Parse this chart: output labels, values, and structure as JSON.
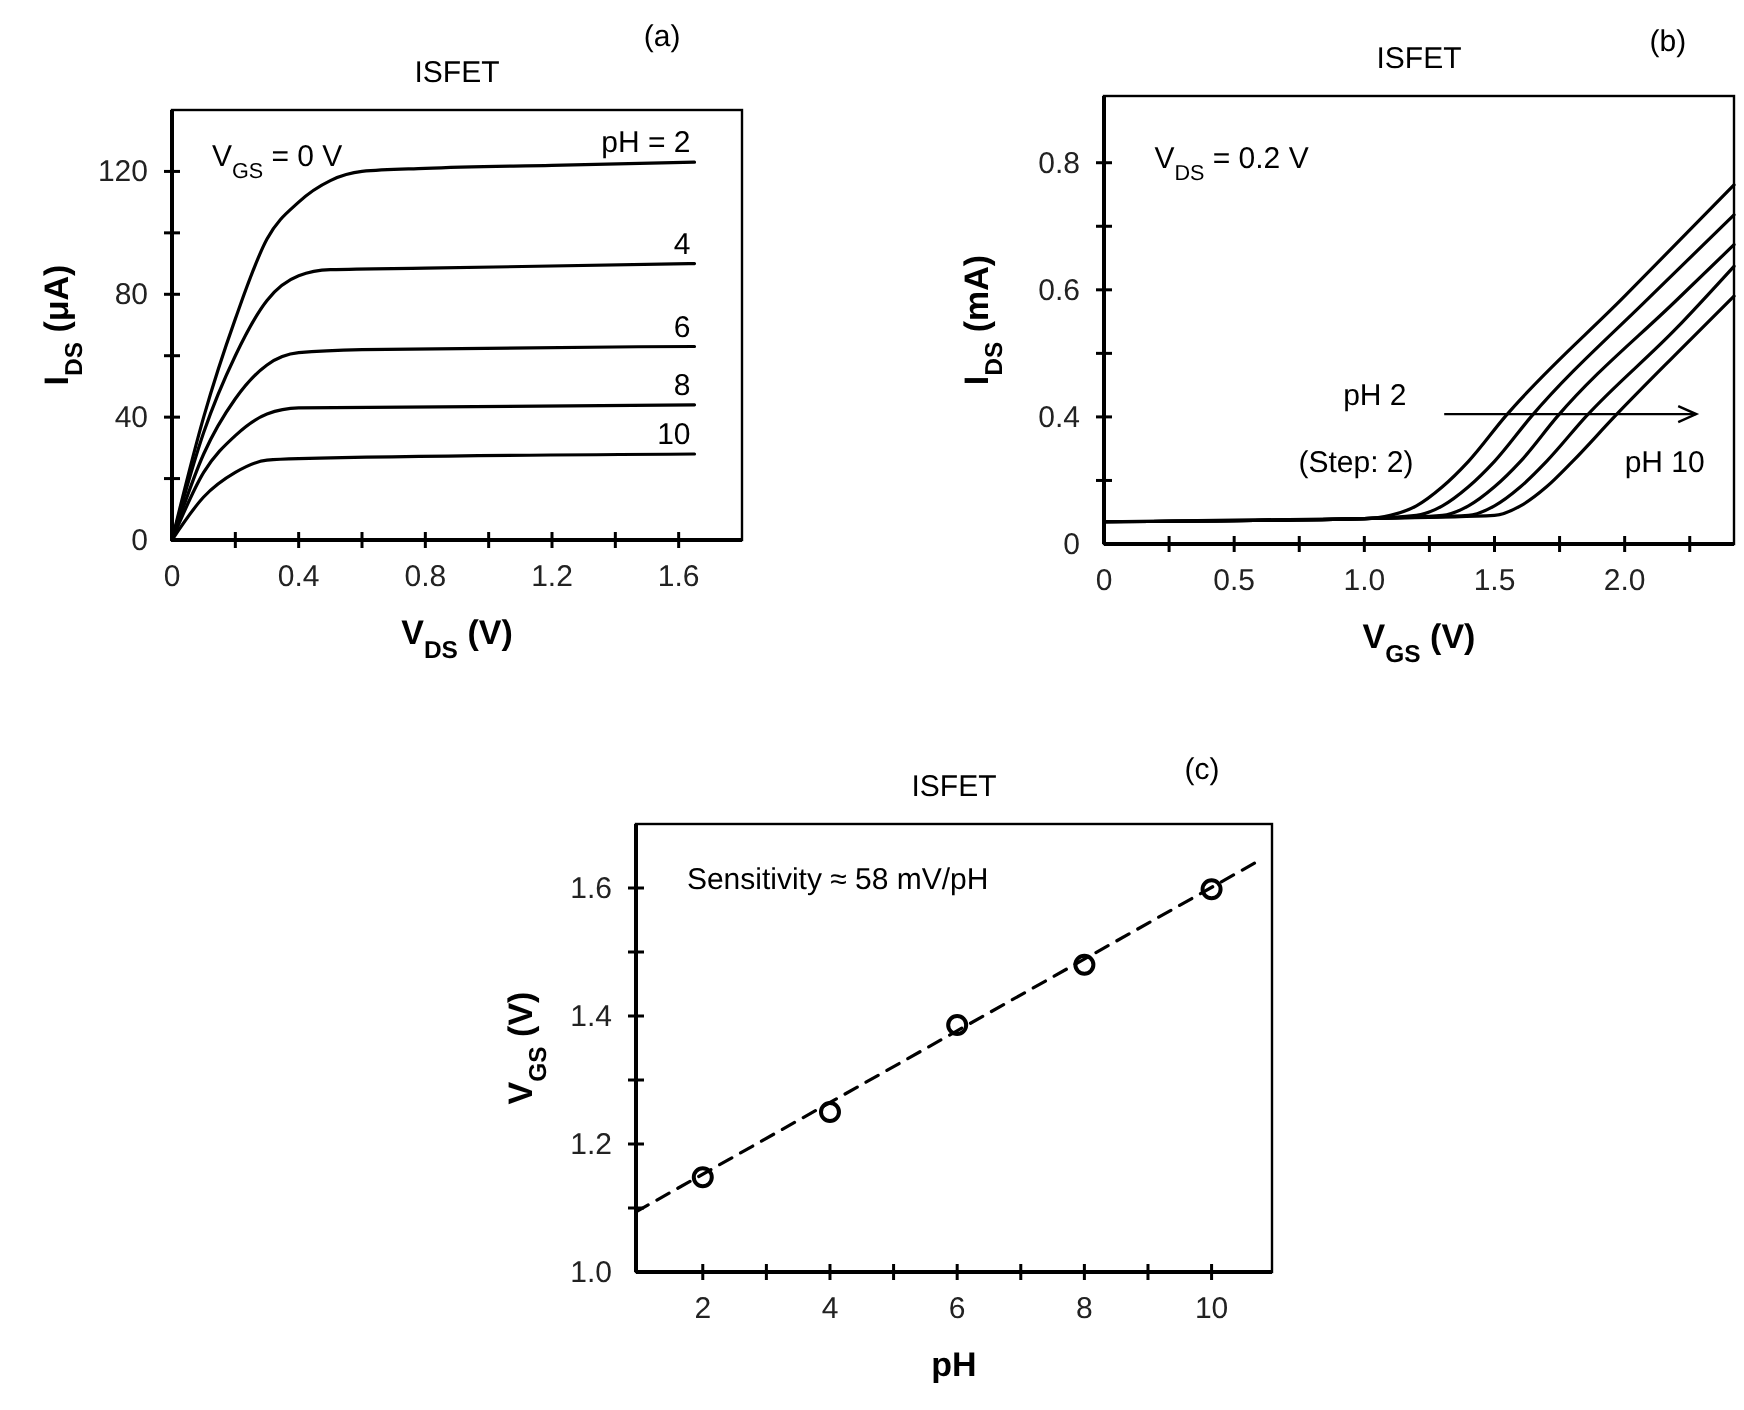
{
  "chart_data": [
    {
      "type": "line",
      "title": "ISFET",
      "xlabel": "V$_{DS}$ (V)",
      "ylabel": "I$_{DS}$ (μA)",
      "annotations": [
        "V$_{GS}$ = 0 V",
        "(a)"
      ],
      "xlim": [
        0,
        1.8
      ],
      "xticks": [
        0,
        {
          "value": 0.2,
          "label": null
        },
        0.4,
        {
          "value": 0.6,
          "label": null
        },
        0.8,
        {
          "value": 1.0,
          "label": null
        },
        1.2,
        {
          "value": 1.4,
          "label": null
        },
        1.6
      ],
      "ylim": [
        0,
        140
      ],
      "yticks": [
        0,
        {
          "value": 20,
          "label": null
        },
        40,
        {
          "value": 60,
          "label": null
        },
        80,
        {
          "value": 100,
          "label": null
        },
        120
      ],
      "series": [
        {
          "name": "pH = 2",
          "color": "#000000",
          "x": [
            0,
            0.1,
            0.2,
            0.3,
            0.4,
            0.5,
            0.6,
            0.8,
            1.2,
            1.65
          ],
          "values": [
            0,
            40,
            72,
            98,
            110,
            117,
            120,
            121,
            122,
            123
          ]
        },
        {
          "name": "4",
          "color": "#000000",
          "x": [
            0,
            0.1,
            0.2,
            0.3,
            0.4,
            0.5,
            0.8,
            1.65
          ],
          "values": [
            0,
            35,
            60,
            78,
            86,
            88,
            88.5,
            90
          ]
        },
        {
          "name": "6",
          "color": "#000000",
          "x": [
            0,
            0.1,
            0.2,
            0.3,
            0.4,
            0.6,
            1.65
          ],
          "values": [
            0,
            28,
            46,
            57,
            61,
            62,
            63
          ]
        },
        {
          "name": "8",
          "color": "#000000",
          "x": [
            0,
            0.1,
            0.2,
            0.3,
            0.4,
            1.65
          ],
          "values": [
            0,
            22,
            34,
            41,
            43,
            44
          ]
        },
        {
          "name": "10",
          "color": "#000000",
          "x": [
            0,
            0.1,
            0.2,
            0.3,
            0.4,
            1.65
          ],
          "values": [
            0,
            14,
            22,
            26,
            26.5,
            28
          ]
        }
      ]
    },
    {
      "type": "line",
      "title": "ISFET",
      "xlabel": "V$_{GS}$ (V)",
      "ylabel": "I$_{DS}$ (mA)",
      "annotations": [
        "V$_{DS}$ = 0.2 V",
        "pH 2",
        "(Step: 2)",
        "pH 10",
        "(b)"
      ],
      "xlim": [
        0,
        2.42
      ],
      "xticks": [
        0,
        {
          "value": 0.25,
          "label": null
        },
        0.5,
        {
          "value": 0.75,
          "label": null
        },
        {
          "value": 1,
          "label": "1.0"
        },
        {
          "value": 1.25,
          "label": null
        },
        1.5,
        {
          "value": 1.75,
          "label": null
        },
        {
          "value": 2,
          "label": "2.0"
        },
        {
          "value": 2.25,
          "label": null
        }
      ],
      "ylim": [
        0.2,
        0.905
      ],
      "yticks": [
        {
          "value": 0.2,
          "label": "0"
        },
        {
          "value": 0.3,
          "label": null
        },
        0.4,
        {
          "value": 0.5,
          "label": null
        },
        0.6,
        {
          "value": 0.7,
          "label": null
        },
        0.8
      ],
      "series": [
        {
          "color": "#000000",
          "x": [
            0,
            1.0,
            1.1,
            1.2,
            1.3,
            1.4,
            1.54,
            2.0,
            2.42
          ],
          "values": [
            0.235,
            0.24,
            0.245,
            0.26,
            0.29,
            0.33,
            0.4,
            0.59,
            0.765
          ]
        },
        {
          "color": "#000000",
          "x": [
            0,
            1.0,
            1.2,
            1.3,
            1.4,
            1.5,
            1.64,
            2.1,
            2.42
          ],
          "values": [
            0.235,
            0.24,
            0.245,
            0.26,
            0.29,
            0.33,
            0.4,
            0.59,
            0.718
          ]
        },
        {
          "color": "#000000",
          "x": [
            0,
            1.0,
            1.3,
            1.4,
            1.5,
            1.6,
            1.74,
            2.2,
            2.42
          ],
          "values": [
            0.235,
            0.24,
            0.245,
            0.26,
            0.29,
            0.33,
            0.4,
            0.584,
            0.671
          ]
        },
        {
          "color": "#000000",
          "x": [
            0,
            1.0,
            1.4,
            1.5,
            1.6,
            1.7,
            1.85,
            2.2,
            2.42
          ],
          "values": [
            0.235,
            0.24,
            0.245,
            0.26,
            0.29,
            0.33,
            0.4,
            0.54,
            0.637
          ]
        },
        {
          "color": "#000000",
          "x": [
            0,
            1.0,
            1.5,
            1.6,
            1.7,
            1.8,
            1.96,
            2.2,
            2.42
          ],
          "values": [
            0.235,
            0.24,
            0.245,
            0.26,
            0.29,
            0.33,
            0.4,
            0.5,
            0.59
          ]
        }
      ]
    },
    {
      "type": "scatter",
      "title": "ISFET",
      "xlabel": "pH",
      "ylabel": "V$_{GS}$ (V)",
      "annotations": [
        "Sensitivity ≈ 58 mV/pH",
        "(c)"
      ],
      "xlim": [
        0.95,
        10.95
      ],
      "xticks": [
        2,
        {
          "value": 3,
          "label": null
        },
        4,
        {
          "value": 5,
          "label": null
        },
        6,
        {
          "value": 7,
          "label": null
        },
        8,
        {
          "value": 9,
          "label": null
        },
        10
      ],
      "ylim": [
        1.0,
        1.7
      ],
      "yticks": [
        {
          "value": 1,
          "label": "1.0"
        },
        {
          "value": 1.1,
          "label": null
        },
        1.2,
        {
          "value": 1.3,
          "label": null
        },
        1.4,
        {
          "value": 1.5,
          "label": null
        },
        1.6
      ],
      "series": [
        {
          "color": "#000000",
          "marker": "circle",
          "x": [
            2,
            4,
            6,
            8,
            10
          ],
          "values": [
            1.148,
            1.25,
            1.386,
            1.48,
            1.598
          ]
        },
        {
          "type": "line",
          "color": "#000000",
          "line_style": "dashed",
          "x": [
            0.95,
            10.75
          ],
          "values": [
            1.094,
            1.643
          ]
        }
      ]
    }
  ]
}
